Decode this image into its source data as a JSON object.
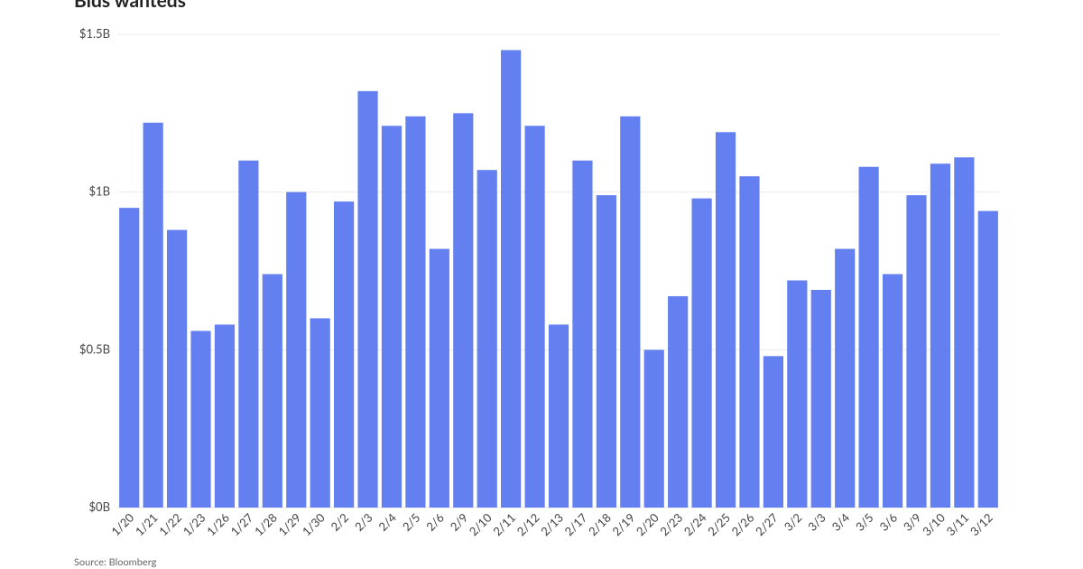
{
  "chart_data": {
    "type": "bar",
    "title": "Bids wanteds",
    "source": "Source: Bloomberg",
    "categories": [
      "1/20",
      "1/21",
      "1/22",
      "1/23",
      "1/26",
      "1/27",
      "1/28",
      "1/29",
      "1/30",
      "2/2",
      "2/3",
      "2/4",
      "2/5",
      "2/6",
      "2/9",
      "2/10",
      "2/11",
      "2/12",
      "2/13",
      "2/17",
      "2/18",
      "2/19",
      "2/20",
      "2/23",
      "2/24",
      "2/25",
      "2/26",
      "2/27",
      "3/2",
      "3/3",
      "3/4",
      "3/5",
      "3/6",
      "3/9",
      "3/10",
      "3/11",
      "3/12"
    ],
    "values": [
      0.95,
      1.22,
      0.88,
      0.56,
      0.58,
      1.1,
      0.74,
      1.0,
      0.6,
      0.97,
      1.32,
      1.21,
      1.24,
      0.82,
      1.25,
      1.07,
      1.45,
      1.21,
      0.58,
      1.1,
      0.99,
      1.24,
      0.5,
      0.67,
      0.98,
      1.19,
      1.05,
      0.48,
      0.72,
      0.69,
      0.82,
      1.08,
      0.74,
      0.99,
      1.09,
      1.11,
      0.94
    ],
    "color": "#6480f0",
    "ylim": [
      0,
      1.5
    ],
    "yticks": [
      {
        "value": 0,
        "label": "$0B"
      },
      {
        "value": 0.5,
        "label": "$0.5B"
      },
      {
        "value": 1,
        "label": "$1B"
      },
      {
        "value": 1.5,
        "label": "$1.5B"
      }
    ],
    "grid": true
  }
}
